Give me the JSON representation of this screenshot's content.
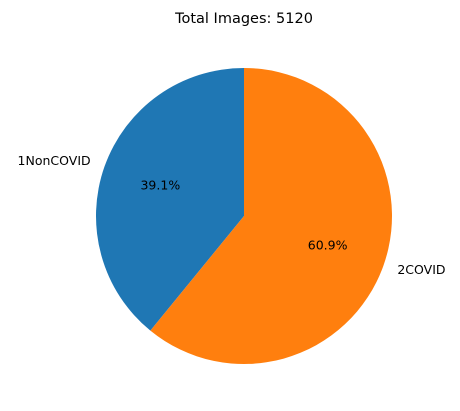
{
  "chart_data": {
    "type": "pie",
    "title": "Total Images: 5120",
    "slices": [
      {
        "label": "1NonCOVID",
        "value": 39.1,
        "pct_label": "39.1%",
        "color": "#1f77b4"
      },
      {
        "label": "2COVID",
        "value": 60.9,
        "pct_label": "60.9%",
        "color": "#ff7f0e"
      }
    ],
    "start_angle": 90,
    "direction": "counterclockwise"
  }
}
